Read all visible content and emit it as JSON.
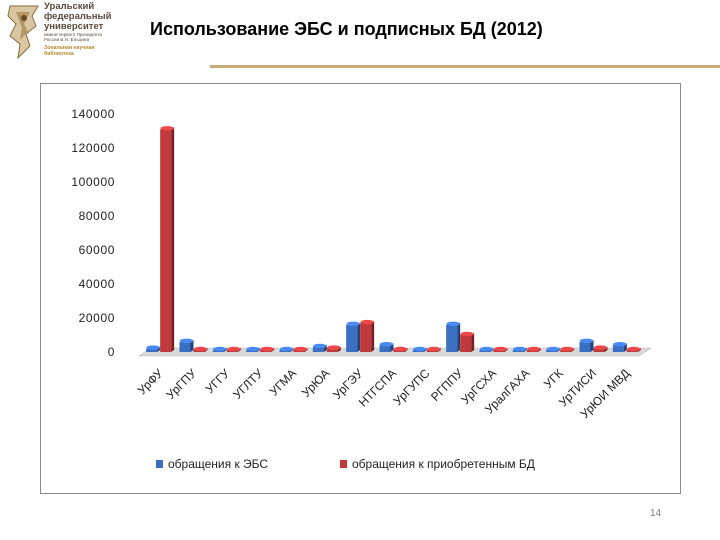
{
  "header": {
    "logo_lines": [
      "Уральский",
      "федеральный",
      "университет"
    ],
    "logo_small_lines": [
      "имени первого Президента",
      "России Б.Н. Ельцина"
    ],
    "logo_lib_lines": [
      "Зональная научная",
      "библиотека"
    ],
    "title": "Использование ЭБС и подписных БД (2012)"
  },
  "footer": {
    "page_number": "14"
  },
  "colors": {
    "title_rule": "#c9ab78",
    "series1": "#3a6fc4",
    "series2": "#c0393b"
  },
  "chart_data": {
    "type": "bar",
    "style": "3d-clustered-column",
    "categories": [
      "УрФУ",
      "УрГПУ",
      "УГГУ",
      "УГЛТУ",
      "УГМА",
      "УрЮА",
      "УрГЭУ",
      "НТГСПА",
      "УрГУПС",
      "РГППУ",
      "УрГСХА",
      "УралГАХА",
      "УГК",
      "УрТИСИ",
      "УрЮИ МВД"
    ],
    "series": [
      {
        "name": "обращения к ЭБС",
        "color": "#3a6fc4",
        "values": [
          2000,
          6000,
          1000,
          0,
          0,
          3000,
          16000,
          4000,
          0,
          16000,
          0,
          0,
          0,
          6000,
          4000
        ]
      },
      {
        "name": "обращения к приобретенным БД",
        "color": "#c0393b",
        "values": [
          131000,
          0,
          1000,
          0,
          0,
          2000,
          17000,
          0,
          0,
          10000,
          0,
          0,
          0,
          2000,
          0
        ]
      }
    ],
    "y_ticks": [
      "0",
      "20000",
      "40000",
      "60000",
      "80000",
      "100000",
      "120000",
      "140000"
    ],
    "ylim": [
      0,
      140000
    ],
    "legend_position": "bottom",
    "grid": false
  }
}
